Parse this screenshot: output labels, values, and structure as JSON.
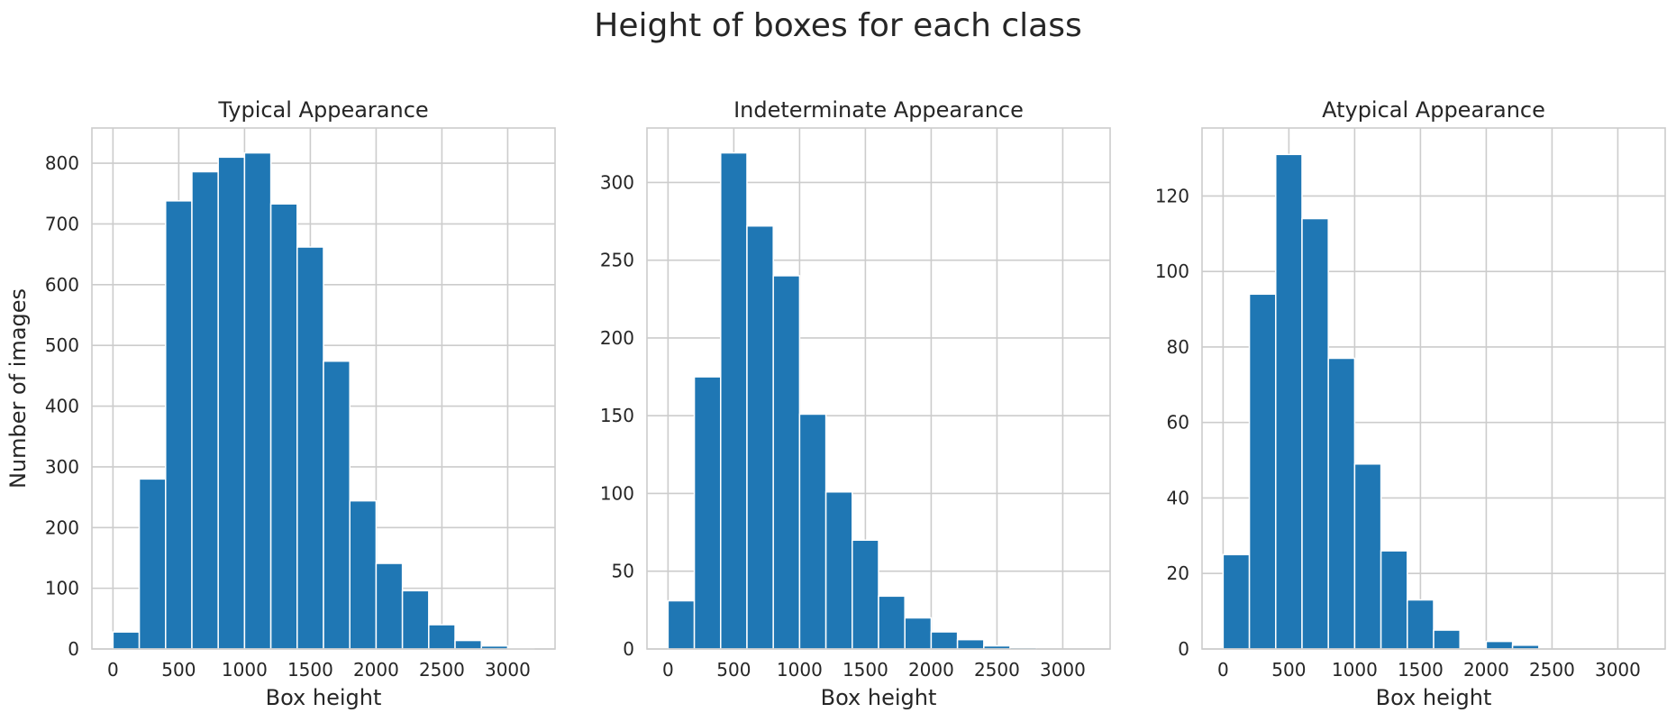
{
  "title": "Height of boxes for each class",
  "chart_data": [
    {
      "type": "bar",
      "title": "Typical Appearance",
      "xlabel": "Box height",
      "ylabel": "Number of images",
      "bin_edges": [
        0,
        200,
        400,
        600,
        800,
        1000,
        1200,
        1400,
        1600,
        1800,
        2000,
        2200,
        2400,
        2600,
        2800,
        3000,
        3200
      ],
      "values": [
        28,
        280,
        738,
        786,
        810,
        817,
        733,
        662,
        474,
        244,
        141,
        96,
        40,
        14,
        5,
        1
      ],
      "xlim": [
        -160,
        3360
      ],
      "ylim": [
        0,
        858
      ],
      "xticks": [
        0,
        500,
        1000,
        1500,
        2000,
        2500,
        3000
      ],
      "yticks": [
        0,
        100,
        200,
        300,
        400,
        500,
        600,
        700,
        800
      ],
      "color": "#1f77b4",
      "grid": true
    },
    {
      "type": "bar",
      "title": "Indeterminate Appearance",
      "xlabel": "Box height",
      "ylabel": "",
      "bin_edges": [
        0,
        200,
        400,
        600,
        800,
        1000,
        1200,
        1400,
        1600,
        1800,
        2000,
        2200,
        2400,
        2600,
        2800,
        3000,
        3200
      ],
      "values": [
        31,
        175,
        319,
        272,
        240,
        151,
        101,
        70,
        34,
        20,
        11,
        6,
        2,
        1,
        0,
        0
      ],
      "xlim": [
        -160,
        3360
      ],
      "ylim": [
        0,
        335
      ],
      "xticks": [
        0,
        500,
        1000,
        1500,
        2000,
        2500,
        3000
      ],
      "yticks": [
        0,
        50,
        100,
        150,
        200,
        250,
        300
      ],
      "color": "#1f77b4",
      "grid": true
    },
    {
      "type": "bar",
      "title": "Atypical Appearance",
      "xlabel": "Box height",
      "ylabel": "",
      "bin_edges": [
        0,
        200,
        400,
        600,
        800,
        1000,
        1200,
        1400,
        1600,
        1800,
        2000,
        2200,
        2400,
        2600,
        2800,
        3000,
        3200
      ],
      "values": [
        25,
        94,
        131,
        114,
        77,
        49,
        26,
        13,
        5,
        0,
        2,
        1,
        0,
        0,
        0,
        0
      ],
      "xlim": [
        -160,
        3360
      ],
      "ylim": [
        0,
        138
      ],
      "xticks": [
        0,
        500,
        1000,
        1500,
        2000,
        2500,
        3000
      ],
      "yticks": [
        0,
        20,
        40,
        60,
        80,
        100,
        120
      ],
      "color": "#1f77b4",
      "grid": true
    }
  ]
}
